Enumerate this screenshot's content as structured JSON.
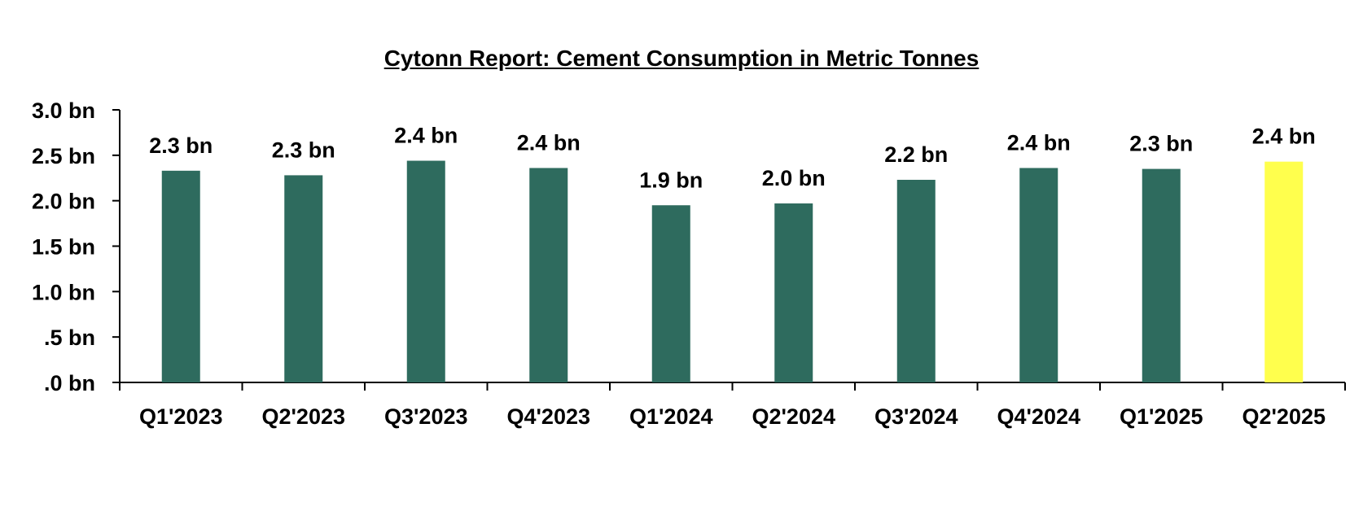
{
  "chart_data": {
    "type": "bar",
    "title": "Cytonn Report: Cement Consumption in Metric Tonnes",
    "xlabel": "",
    "ylabel": "",
    "categories": [
      "Q1'2023",
      "Q2'2023",
      "Q3'2023",
      "Q4'2023",
      "Q1'2024",
      "Q2'2024",
      "Q3'2024",
      "Q4'2024",
      "Q1'2025",
      "Q2'2025"
    ],
    "values": [
      2.33,
      2.28,
      2.44,
      2.36,
      1.95,
      1.97,
      2.23,
      2.36,
      2.35,
      2.43
    ],
    "data_labels": [
      "2.3 bn",
      "2.3 bn",
      "2.4 bn",
      "2.4 bn",
      "1.9 bn",
      "2.0 bn",
      "2.2 bn",
      "2.4 bn",
      "2.3 bn",
      "2.4 bn"
    ],
    "y_ticks": [
      0,
      0.5,
      1.0,
      1.5,
      2.0,
      2.5,
      3.0
    ],
    "y_tick_labels": [
      ".0 bn",
      ".5 bn",
      "1.0 bn",
      "1.5 bn",
      "2.0 bn",
      "2.5 bn",
      "3.0 bn"
    ],
    "ylim": [
      0,
      3.0
    ],
    "grid": false,
    "legend": "none",
    "colors": {
      "bar": "#2e6b5e",
      "highlight": "#ffff4d",
      "axis": "#000000"
    },
    "highlight_index": 9
  }
}
